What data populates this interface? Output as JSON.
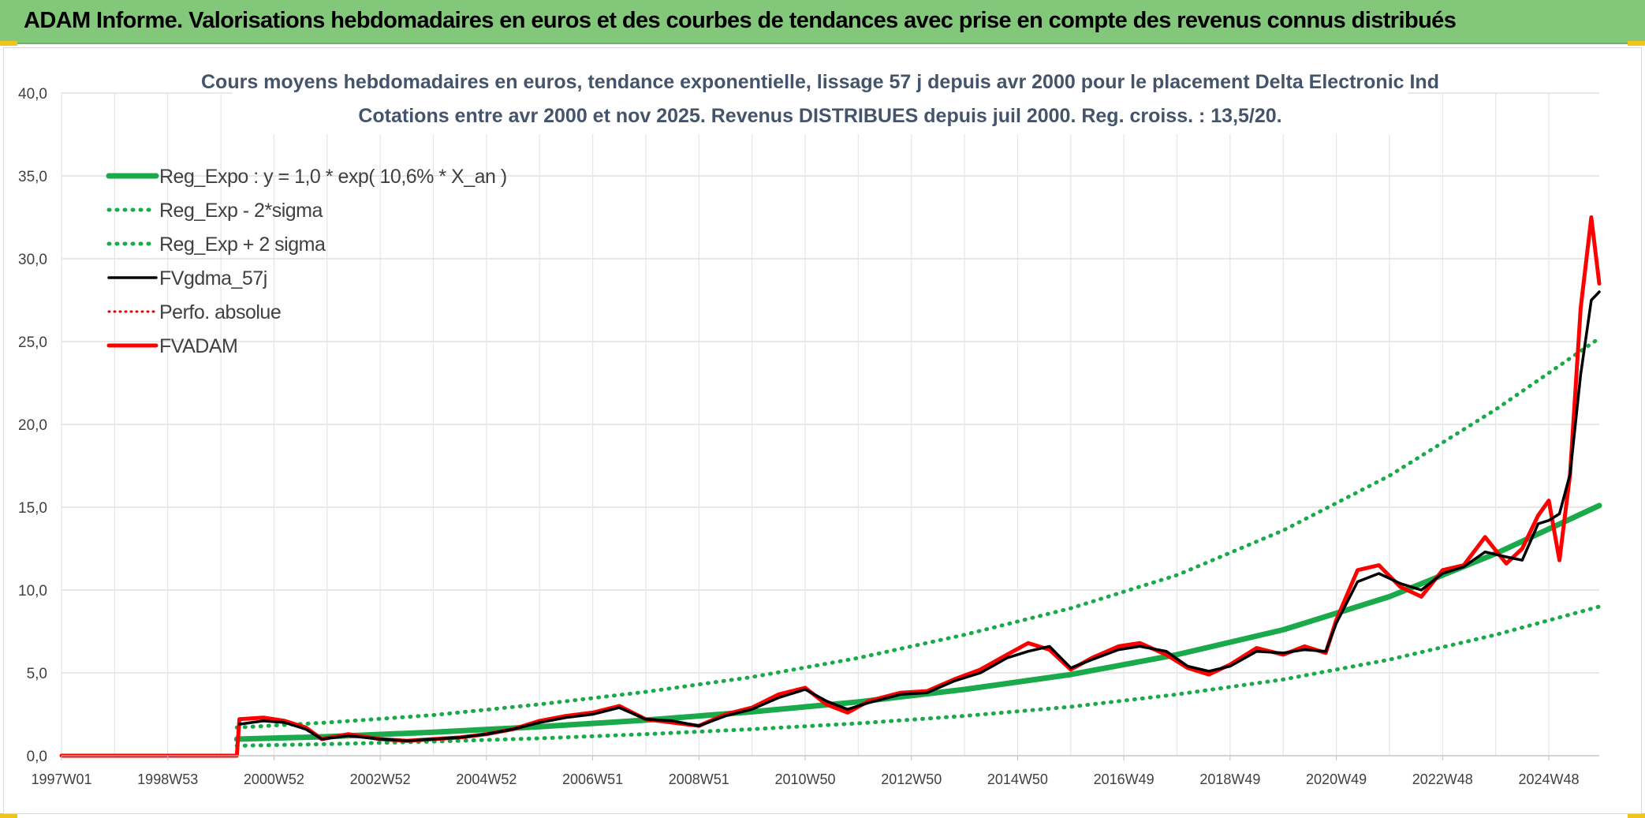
{
  "header": {
    "title": "ADAM Informe. Valorisations hebdomadaires en euros et des courbes de tendances avec prise en compte des revenus connus distribués"
  },
  "colors": {
    "header_bg": "#82c77a",
    "reg_expo": "#1aaa4b",
    "fvgdma": "#000000",
    "fvadam": "#ff0000",
    "perfo": "#e00000",
    "grid": "#d9d9d9"
  },
  "chart_data": {
    "type": "line",
    "title_line1": "Cours moyens hebdomadaires en euros, tendance exponentielle, lissage 57 j depuis avr 2000 pour le placement Delta Electronic Ind",
    "title_line2": "Cotations entre avr 2000 et nov 2025. Revenus DISTRIBUES depuis juil 2000. Reg. croiss. : 13,5/20.",
    "xlabel": "",
    "ylabel": "",
    "x_range": [
      1997.0,
      2025.95
    ],
    "ylim": [
      0,
      40
    ],
    "yticks": [
      "0,0",
      "5,0",
      "10,0",
      "15,0",
      "20,0",
      "25,0",
      "30,0",
      "35,0",
      "40,0"
    ],
    "ytick_values": [
      0,
      5,
      10,
      15,
      20,
      25,
      30,
      35,
      40
    ],
    "xticks": [
      "1997W01",
      "1998W53",
      "2000W52",
      "2002W52",
      "2004W52",
      "2006W51",
      "2008W51",
      "2010W50",
      "2012W50",
      "2014W50",
      "2016W49",
      "2018W49",
      "2020W49",
      "2022W48",
      "2024W48"
    ],
    "xtick_years": [
      1997.0,
      1999.0,
      2001.0,
      2003.0,
      2005.0,
      2007.0,
      2009.0,
      2011.0,
      2013.0,
      2015.0,
      2017.0,
      2019.0,
      2021.0,
      2023.0,
      2025.0
    ],
    "grid": true,
    "legend_position": "top-left",
    "legend": [
      {
        "label": "Reg_Expo : y = 1,0 * exp( 10,6% *  X_an )",
        "style": "solid-thick",
        "color": "#1aaa4b"
      },
      {
        "label": "Reg_Exp - 2*sigma",
        "style": "dotted",
        "color": "#1aaa4b"
      },
      {
        "label": "Reg_Exp + 2 sigma",
        "style": "dotted",
        "color": "#1aaa4b"
      },
      {
        "label": "FVgdma_57j",
        "style": "solid",
        "color": "#000000"
      },
      {
        "label": "Perfo. absolue",
        "style": "dotted",
        "color": "#e00000"
      },
      {
        "label": "FVADAM",
        "style": "solid-thick",
        "color": "#ff0000"
      }
    ],
    "series": [
      {
        "name": "Reg_Expo : y = 1,0 * exp( 10,6% *  X_an )",
        "x": [
          2000.3,
          2002.0,
          2004.0,
          2006.0,
          2008.0,
          2010.0,
          2012.0,
          2014.0,
          2016.0,
          2018.0,
          2020.0,
          2022.0,
          2024.0,
          2025.95
        ],
        "y": [
          1.0,
          1.15,
          1.42,
          1.75,
          2.15,
          2.65,
          3.25,
          4.0,
          4.9,
          6.1,
          7.6,
          9.6,
          12.2,
          15.1
        ]
      },
      {
        "name": "Reg_Exp - 2*sigma",
        "x": [
          2000.3,
          2002.0,
          2004.0,
          2006.0,
          2008.0,
          2010.0,
          2012.0,
          2014.0,
          2016.0,
          2018.0,
          2020.0,
          2022.0,
          2024.0,
          2025.95
        ],
        "y": [
          0.6,
          0.7,
          0.85,
          1.05,
          1.3,
          1.6,
          1.95,
          2.4,
          2.95,
          3.7,
          4.6,
          5.8,
          7.3,
          9.0
        ]
      },
      {
        "name": "Reg_Exp + 2 sigma",
        "x": [
          2000.3,
          2002.0,
          2004.0,
          2006.0,
          2008.0,
          2010.0,
          2012.0,
          2014.0,
          2016.0,
          2018.0,
          2020.0,
          2022.0,
          2024.0,
          2025.95
        ],
        "y": [
          1.7,
          2.0,
          2.45,
          3.1,
          3.85,
          4.75,
          5.9,
          7.3,
          8.9,
          10.9,
          13.6,
          16.9,
          20.9,
          25.2
        ]
      },
      {
        "name": "FVgdma_57j",
        "x": [
          2000.35,
          2000.8,
          2001.2,
          2001.6,
          2001.9,
          2002.4,
          2003.0,
          2003.5,
          2004.0,
          2004.5,
          2005.0,
          2005.5,
          2006.0,
          2006.5,
          2007.0,
          2007.5,
          2008.0,
          2008.5,
          2009.0,
          2009.5,
          2010.0,
          2010.5,
          2011.0,
          2011.4,
          2011.8,
          2012.2,
          2012.8,
          2013.3,
          2013.8,
          2014.3,
          2014.8,
          2015.2,
          2015.6,
          2016.0,
          2016.4,
          2016.9,
          2017.3,
          2017.8,
          2018.2,
          2018.6,
          2019.0,
          2019.5,
          2020.0,
          2020.4,
          2020.8,
          2021.0,
          2021.4,
          2021.8,
          2022.2,
          2022.6,
          2023.0,
          2023.4,
          2023.8,
          2024.2,
          2024.5,
          2024.8,
          2025.0,
          2025.2,
          2025.4,
          2025.6,
          2025.8,
          2025.95
        ],
        "y": [
          1.9,
          2.1,
          2.0,
          1.6,
          1.0,
          1.2,
          1.0,
          0.9,
          1.0,
          1.1,
          1.3,
          1.6,
          2.0,
          2.3,
          2.5,
          2.9,
          2.2,
          2.1,
          1.8,
          2.4,
          2.8,
          3.5,
          4.0,
          3.3,
          2.8,
          3.2,
          3.7,
          3.8,
          4.5,
          5.0,
          5.9,
          6.3,
          6.6,
          5.3,
          5.8,
          6.4,
          6.6,
          6.3,
          5.4,
          5.1,
          5.4,
          6.3,
          6.2,
          6.4,
          6.3,
          8.0,
          10.5,
          11.0,
          10.4,
          10.0,
          11.0,
          11.4,
          12.3,
          12.0,
          11.8,
          14.0,
          14.2,
          14.6,
          17.0,
          23.0,
          27.5,
          28.0
        ]
      },
      {
        "name": "Perfo. absolue",
        "x": [
          1997.0,
          2000.3,
          2000.35,
          2000.8,
          2001.2,
          2001.6,
          2001.9,
          2002.4,
          2003.0,
          2003.5,
          2004.0,
          2004.5,
          2005.0,
          2005.5,
          2006.0,
          2006.5,
          2007.0,
          2007.5,
          2008.0,
          2008.5,
          2009.0,
          2009.5,
          2010.0,
          2010.5,
          2011.0,
          2011.4,
          2011.8,
          2012.2,
          2012.8,
          2013.3,
          2013.8,
          2014.3,
          2014.8,
          2015.2,
          2015.6,
          2016.0,
          2016.4,
          2016.9,
          2017.3,
          2017.8,
          2018.2,
          2018.6,
          2019.0,
          2019.5,
          2020.0,
          2020.4,
          2020.8,
          2021.0,
          2021.4,
          2021.8,
          2022.2,
          2022.6,
          2023.0,
          2023.4,
          2023.8,
          2024.2,
          2024.5,
          2024.8,
          2025.0,
          2025.2,
          2025.4,
          2025.6,
          2025.8,
          2025.95
        ],
        "y": [
          0.0,
          0.0,
          2.2,
          2.3,
          2.1,
          1.7,
          1.0,
          1.3,
          1.0,
          0.9,
          1.0,
          1.1,
          1.3,
          1.6,
          2.1,
          2.4,
          2.6,
          3.0,
          2.2,
          2.0,
          1.8,
          2.5,
          2.9,
          3.7,
          4.1,
          3.1,
          2.6,
          3.3,
          3.8,
          3.9,
          4.6,
          5.2,
          6.1,
          6.8,
          6.4,
          5.2,
          5.9,
          6.6,
          6.8,
          6.1,
          5.3,
          4.9,
          5.5,
          6.5,
          6.1,
          6.6,
          6.2,
          8.2,
          11.2,
          11.5,
          10.2,
          9.6,
          11.2,
          11.5,
          13.2,
          11.6,
          12.5,
          14.5,
          15.4,
          11.8,
          17.0,
          27.0,
          32.5,
          28.5
        ]
      },
      {
        "name": "FVADAM",
        "x": [
          1997.0,
          2000.3,
          2000.35,
          2000.8,
          2001.2,
          2001.6,
          2001.9,
          2002.4,
          2003.0,
          2003.5,
          2004.0,
          2004.5,
          2005.0,
          2005.5,
          2006.0,
          2006.5,
          2007.0,
          2007.5,
          2008.0,
          2008.5,
          2009.0,
          2009.5,
          2010.0,
          2010.5,
          2011.0,
          2011.4,
          2011.8,
          2012.2,
          2012.8,
          2013.3,
          2013.8,
          2014.3,
          2014.8,
          2015.2,
          2015.6,
          2016.0,
          2016.4,
          2016.9,
          2017.3,
          2017.8,
          2018.2,
          2018.6,
          2019.0,
          2019.5,
          2020.0,
          2020.4,
          2020.8,
          2021.0,
          2021.4,
          2021.8,
          2022.2,
          2022.6,
          2023.0,
          2023.4,
          2023.8,
          2024.2,
          2024.5,
          2024.8,
          2025.0,
          2025.2,
          2025.4,
          2025.6,
          2025.8,
          2025.95
        ],
        "y": [
          0.0,
          0.0,
          2.2,
          2.3,
          2.1,
          1.7,
          1.0,
          1.3,
          1.0,
          0.9,
          1.0,
          1.1,
          1.3,
          1.6,
          2.1,
          2.4,
          2.6,
          3.0,
          2.2,
          2.0,
          1.8,
          2.5,
          2.9,
          3.7,
          4.1,
          3.1,
          2.6,
          3.3,
          3.8,
          3.9,
          4.6,
          5.2,
          6.1,
          6.8,
          6.4,
          5.2,
          5.9,
          6.6,
          6.8,
          6.1,
          5.3,
          4.9,
          5.5,
          6.5,
          6.1,
          6.6,
          6.2,
          8.2,
          11.2,
          11.5,
          10.2,
          9.6,
          11.2,
          11.5,
          13.2,
          11.6,
          12.5,
          14.5,
          15.4,
          11.8,
          17.0,
          27.0,
          32.5,
          28.5
        ]
      }
    ]
  }
}
